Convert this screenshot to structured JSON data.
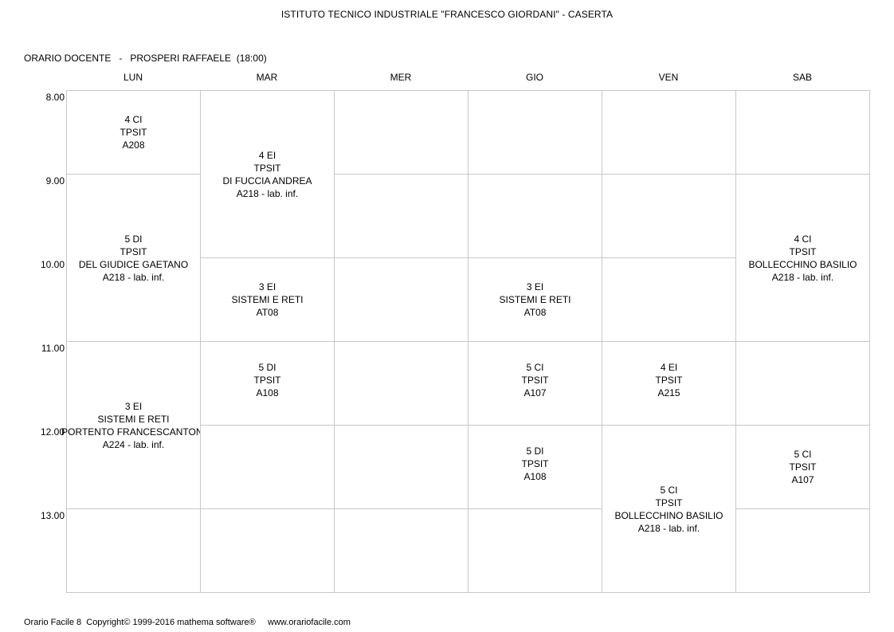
{
  "header": {
    "school": "ISTITUTO TECNICO INDUSTRIALE \"FRANCESCO GIORDANI\" - CASERTA",
    "teacher_line": "ORARIO DOCENTE   -   PROSPERI RAFFAELE  (18:00)"
  },
  "days": [
    "LUN",
    "MAR",
    "MER",
    "GIO",
    "VEN",
    "SAB"
  ],
  "times": [
    "8.00",
    "9.00",
    "10.00",
    "11.00",
    "12.00",
    "13.00"
  ],
  "lessons": [
    {
      "day": 0,
      "start": 0,
      "span": 1,
      "lines": [
        "4 CI",
        "TPSIT",
        "A208"
      ]
    },
    {
      "day": 0,
      "start": 1,
      "span": 2,
      "lines": [
        "5 DI",
        "TPSIT",
        "DEL GIUDICE GAETANO",
        "A218 - lab. inf."
      ]
    },
    {
      "day": 0,
      "start": 3,
      "span": 2,
      "lines": [
        "3 EI",
        "SISTEMI E RETI",
        "PORTENTO FRANCESCANTONI",
        "A224 - lab. inf."
      ]
    },
    {
      "day": 0,
      "start": 5,
      "span": 1,
      "lines": []
    },
    {
      "day": 1,
      "start": 0,
      "span": 2,
      "lines": [
        "4 EI",
        "TPSIT",
        "DI FUCCIA ANDREA",
        "A218 - lab. inf."
      ]
    },
    {
      "day": 1,
      "start": 2,
      "span": 1,
      "lines": [
        "3 EI",
        "SISTEMI E RETI",
        "AT08"
      ]
    },
    {
      "day": 1,
      "start": 3,
      "span": 1,
      "lines": [
        "5 DI",
        "TPSIT",
        "A108"
      ],
      "align": "top"
    },
    {
      "day": 1,
      "start": 4,
      "span": 1,
      "lines": []
    },
    {
      "day": 1,
      "start": 5,
      "span": 1,
      "lines": []
    },
    {
      "day": 2,
      "start": 0,
      "span": 1,
      "lines": []
    },
    {
      "day": 2,
      "start": 1,
      "span": 1,
      "lines": []
    },
    {
      "day": 2,
      "start": 2,
      "span": 1,
      "lines": []
    },
    {
      "day": 2,
      "start": 3,
      "span": 1,
      "lines": []
    },
    {
      "day": 2,
      "start": 4,
      "span": 1,
      "lines": []
    },
    {
      "day": 2,
      "start": 5,
      "span": 1,
      "lines": []
    },
    {
      "day": 3,
      "start": 0,
      "span": 1,
      "lines": []
    },
    {
      "day": 3,
      "start": 1,
      "span": 1,
      "lines": []
    },
    {
      "day": 3,
      "start": 2,
      "span": 1,
      "lines": [
        "3 EI",
        "SISTEMI E RETI",
        "AT08"
      ]
    },
    {
      "day": 3,
      "start": 3,
      "span": 1,
      "lines": [
        "5 CI",
        "TPSIT",
        "A107"
      ],
      "align": "top"
    },
    {
      "day": 3,
      "start": 4,
      "span": 1,
      "lines": [
        "5 DI",
        "TPSIT",
        "A108"
      ],
      "align": "top"
    },
    {
      "day": 3,
      "start": 5,
      "span": 1,
      "lines": []
    },
    {
      "day": 4,
      "start": 0,
      "span": 1,
      "lines": []
    },
    {
      "day": 4,
      "start": 1,
      "span": 1,
      "lines": []
    },
    {
      "day": 4,
      "start": 2,
      "span": 1,
      "lines": []
    },
    {
      "day": 4,
      "start": 3,
      "span": 1,
      "lines": [
        "4 EI",
        "TPSIT",
        "A215"
      ],
      "align": "top"
    },
    {
      "day": 4,
      "start": 4,
      "span": 2,
      "lines": [
        "5 CI",
        "TPSIT",
        "BOLLECCHINO BASILIO",
        "A218 - lab. inf."
      ]
    },
    {
      "day": 5,
      "start": 0,
      "span": 1,
      "lines": []
    },
    {
      "day": 5,
      "start": 1,
      "span": 2,
      "lines": [
        "4 CI",
        "TPSIT",
        "BOLLECCHINO BASILIO",
        "A218 - lab. inf."
      ]
    },
    {
      "day": 5,
      "start": 3,
      "span": 1,
      "lines": []
    },
    {
      "day": 5,
      "start": 4,
      "span": 1,
      "lines": [
        "5 CI",
        "TPSIT",
        "A107"
      ]
    },
    {
      "day": 5,
      "start": 5,
      "span": 1,
      "lines": []
    }
  ],
  "footer": "Orario Facile 8  Copyright© 1999-2016 mathema software®     www.orariofacile.com"
}
